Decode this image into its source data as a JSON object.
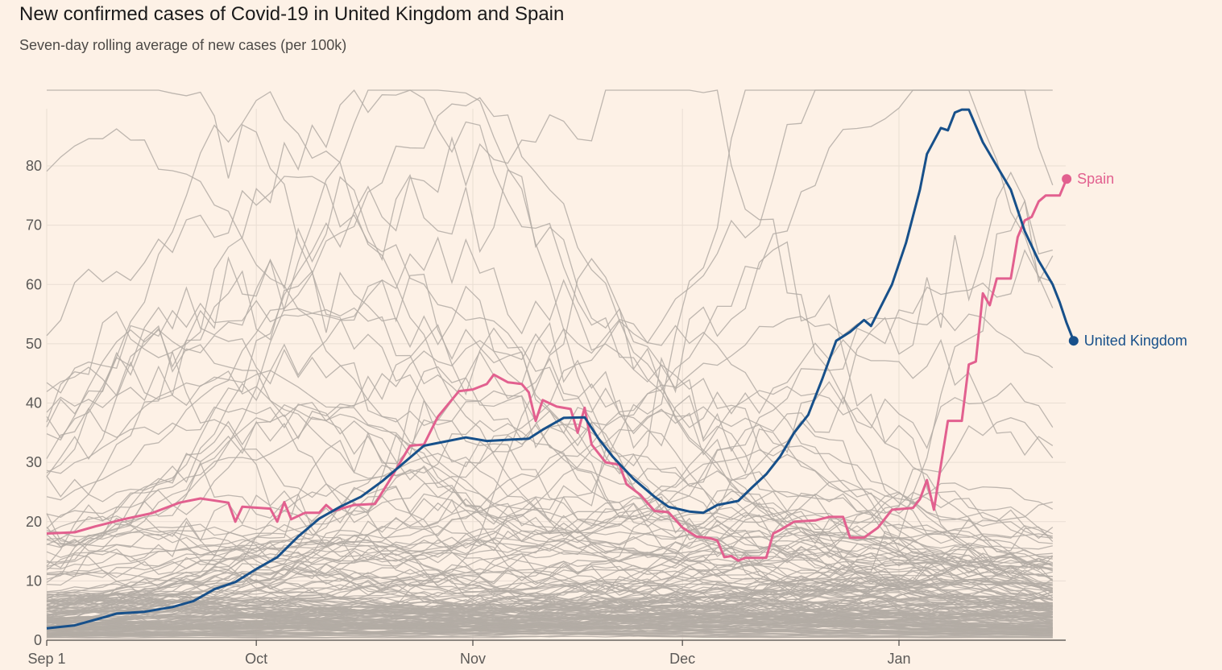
{
  "chart_data": {
    "type": "line",
    "title": "New confirmed cases of Covid-19 in United Kingdom and Spain",
    "subtitle": "Seven-day rolling average of new cases (per 100k)",
    "xlabel": "",
    "ylabel": "",
    "x_range": [
      "2020-09-01",
      "2021-01-23"
    ],
    "ylim": [
      0,
      90
    ],
    "y_ticks": [
      0,
      10,
      20,
      30,
      40,
      50,
      60,
      70,
      80
    ],
    "x_ticks": [
      {
        "date": "2020-09-01",
        "label": "Sep 1"
      },
      {
        "date": "2020-10-01",
        "label": "Oct"
      },
      {
        "date": "2020-11-01",
        "label": "Nov"
      },
      {
        "date": "2020-12-01",
        "label": "Dec"
      },
      {
        "date": "2021-01-01",
        "label": "Jan"
      }
    ],
    "grid": true,
    "legend": "direct labels at line ends",
    "highlight_series": [
      {
        "name": "Spain",
        "color": "#E2608F",
        "points": [
          [
            "2020-09-01",
            18
          ],
          [
            "2020-09-05",
            18.2
          ],
          [
            "2020-09-08",
            19.2
          ],
          [
            "2020-09-12",
            20.4
          ],
          [
            "2020-09-16",
            21.4
          ],
          [
            "2020-09-20",
            23.2
          ],
          [
            "2020-09-23",
            23.9
          ],
          [
            "2020-09-27",
            23.2
          ],
          [
            "2020-09-28",
            20
          ],
          [
            "2020-09-29",
            22.5
          ],
          [
            "2020-10-03",
            22.2
          ],
          [
            "2020-10-04",
            20
          ],
          [
            "2020-10-05",
            23.3
          ],
          [
            "2020-10-06",
            20.4
          ],
          [
            "2020-10-08",
            21.5
          ],
          [
            "2020-10-10",
            21.5
          ],
          [
            "2020-10-11",
            22.8
          ],
          [
            "2020-10-12",
            21.8
          ],
          [
            "2020-10-15",
            22.8
          ],
          [
            "2020-10-18",
            23
          ],
          [
            "2020-10-20",
            26.8
          ],
          [
            "2020-10-23",
            32.8
          ],
          [
            "2020-10-25",
            33
          ],
          [
            "2020-10-27",
            37.7
          ],
          [
            "2020-10-30",
            42
          ],
          [
            "2020-11-01",
            42.3
          ],
          [
            "2020-11-03",
            43.2
          ],
          [
            "2020-11-04",
            44.8
          ],
          [
            "2020-11-06",
            43.5
          ],
          [
            "2020-11-08",
            43.2
          ],
          [
            "2020-11-09",
            41.8
          ],
          [
            "2020-11-10",
            37
          ],
          [
            "2020-11-11",
            40.5
          ],
          [
            "2020-11-13",
            39.4
          ],
          [
            "2020-11-15",
            39
          ],
          [
            "2020-11-16",
            35
          ],
          [
            "2020-11-17",
            39.2
          ],
          [
            "2020-11-18",
            33
          ],
          [
            "2020-11-20",
            30
          ],
          [
            "2020-11-22",
            29.6
          ],
          [
            "2020-11-23",
            26.3
          ],
          [
            "2020-11-25",
            24.5
          ],
          [
            "2020-11-27",
            21.8
          ],
          [
            "2020-11-29",
            21.6
          ],
          [
            "2020-12-01",
            19
          ],
          [
            "2020-12-03",
            17.5
          ],
          [
            "2020-12-05",
            17.2
          ],
          [
            "2020-12-06",
            16.8
          ],
          [
            "2020-12-07",
            14
          ],
          [
            "2020-12-08",
            14.2
          ],
          [
            "2020-12-09",
            13.4
          ],
          [
            "2020-12-10",
            13.9
          ],
          [
            "2020-12-13",
            13.9
          ],
          [
            "2020-12-14",
            18
          ],
          [
            "2020-12-15",
            18.6
          ],
          [
            "2020-12-17",
            20
          ],
          [
            "2020-12-20",
            20.2
          ],
          [
            "2020-12-22",
            20.8
          ],
          [
            "2020-12-24",
            20.8
          ],
          [
            "2020-12-25",
            17.3
          ],
          [
            "2020-12-27",
            17.3
          ],
          [
            "2020-12-29",
            19
          ],
          [
            "2020-12-31",
            22
          ],
          [
            "2021-01-03",
            22.3
          ],
          [
            "2021-01-04",
            23.8
          ],
          [
            "2021-01-05",
            27
          ],
          [
            "2021-01-06",
            22
          ],
          [
            "2021-01-07",
            29.5
          ],
          [
            "2021-01-08",
            37
          ],
          [
            "2021-01-10",
            37
          ],
          [
            "2021-01-11",
            46.5
          ],
          [
            "2021-01-12",
            47
          ],
          [
            "2021-01-13",
            58.5
          ],
          [
            "2021-01-14",
            56.5
          ],
          [
            "2021-01-15",
            61
          ],
          [
            "2021-01-17",
            61
          ],
          [
            "2021-01-18",
            68
          ],
          [
            "2021-01-19",
            70.8
          ],
          [
            "2021-01-20",
            71.4
          ],
          [
            "2021-01-21",
            74
          ],
          [
            "2021-01-22",
            75
          ],
          [
            "2021-01-24",
            75
          ],
          [
            "2021-01-25",
            77.8
          ]
        ]
      },
      {
        "name": "United Kingdom",
        "color": "#17508A",
        "points": [
          [
            "2020-09-01",
            2
          ],
          [
            "2020-09-05",
            2.5
          ],
          [
            "2020-09-09",
            3.8
          ],
          [
            "2020-09-11",
            4.5
          ],
          [
            "2020-09-15",
            4.8
          ],
          [
            "2020-09-19",
            5.6
          ],
          [
            "2020-09-22",
            6.6
          ],
          [
            "2020-09-25",
            8.6
          ],
          [
            "2020-09-28",
            9.8
          ],
          [
            "2020-10-01",
            12
          ],
          [
            "2020-10-04",
            14
          ],
          [
            "2020-10-07",
            17.5
          ],
          [
            "2020-10-10",
            20.5
          ],
          [
            "2020-10-13",
            22.5
          ],
          [
            "2020-10-16",
            24.2
          ],
          [
            "2020-10-19",
            26.8
          ],
          [
            "2020-10-22",
            29.8
          ],
          [
            "2020-10-25",
            32.8
          ],
          [
            "2020-10-28",
            33.5
          ],
          [
            "2020-10-31",
            34.2
          ],
          [
            "2020-11-03",
            33.6
          ],
          [
            "2020-11-06",
            33.8
          ],
          [
            "2020-11-09",
            34
          ],
          [
            "2020-11-11",
            35.5
          ],
          [
            "2020-11-14",
            37.5
          ],
          [
            "2020-11-17",
            37.6
          ],
          [
            "2020-11-19",
            34
          ],
          [
            "2020-11-21",
            31
          ],
          [
            "2020-11-24",
            27.2
          ],
          [
            "2020-11-27",
            24.2
          ],
          [
            "2020-11-29",
            22.5
          ],
          [
            "2020-12-02",
            21.7
          ],
          [
            "2020-12-04",
            21.5
          ],
          [
            "2020-12-06",
            22.8
          ],
          [
            "2020-12-09",
            23.5
          ],
          [
            "2020-12-11",
            25.8
          ],
          [
            "2020-12-13",
            28
          ],
          [
            "2020-12-15",
            31
          ],
          [
            "2020-12-17",
            35
          ],
          [
            "2020-12-19",
            38
          ],
          [
            "2020-12-21",
            44
          ],
          [
            "2020-12-23",
            50.5
          ],
          [
            "2020-12-25",
            52
          ],
          [
            "2020-12-27",
            54
          ],
          [
            "2020-12-28",
            53
          ],
          [
            "2020-12-31",
            60
          ],
          [
            "2021-01-02",
            67
          ],
          [
            "2021-01-04",
            76
          ],
          [
            "2021-01-05",
            82
          ],
          [
            "2021-01-07",
            86.4
          ],
          [
            "2021-01-08",
            86
          ],
          [
            "2021-01-09",
            89
          ],
          [
            "2021-01-10",
            89.5
          ],
          [
            "2021-01-11",
            89.5
          ],
          [
            "2021-01-13",
            84
          ],
          [
            "2021-01-15",
            80
          ],
          [
            "2021-01-17",
            76
          ],
          [
            "2021-01-19",
            69
          ],
          [
            "2021-01-21",
            64
          ],
          [
            "2021-01-23",
            60
          ],
          [
            "2021-01-24",
            57
          ],
          [
            "2021-01-25",
            53.5
          ],
          [
            "2021-01-26",
            50.5
          ]
        ]
      }
    ],
    "background_series_note": "about 170 other countries",
    "background_color": "#B3ABA4"
  },
  "colors": {
    "background": "#FDF1E6",
    "grid": "#E9DED3",
    "spain": "#E2608F",
    "uk": "#17508A",
    "other": "#B3ABA4"
  }
}
